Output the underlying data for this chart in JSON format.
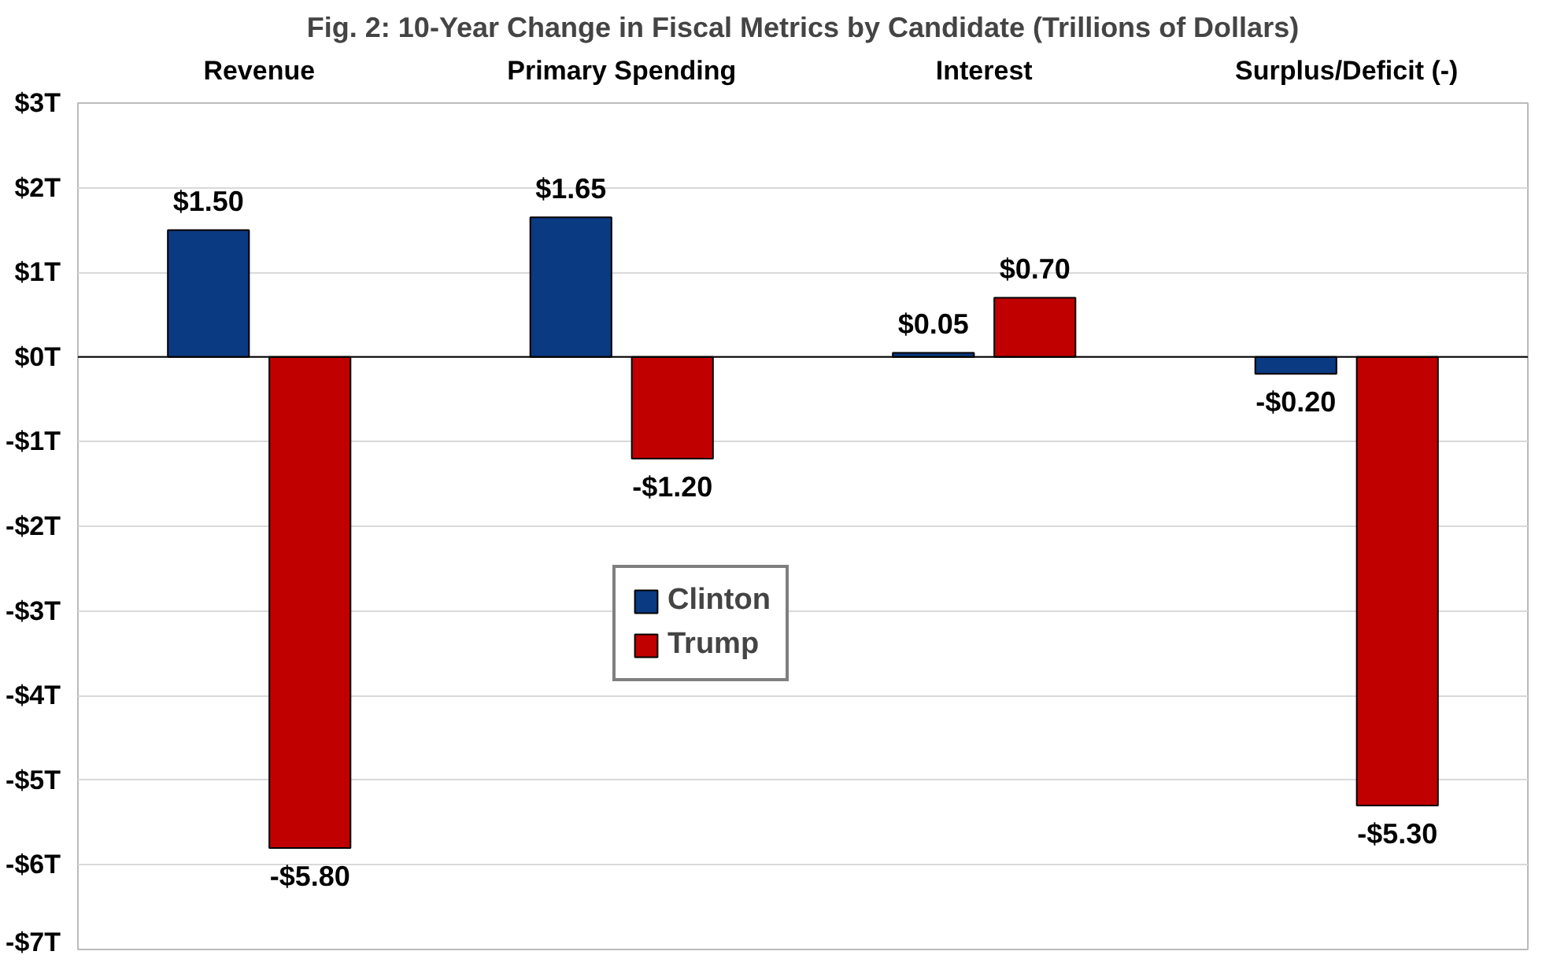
{
  "chart_data": {
    "type": "bar",
    "title": "Fig. 2: 10-Year Change in Fiscal Metrics by Candidate (Trillions of Dollars)",
    "categories": [
      "Revenue",
      "Primary Spending",
      "Interest",
      "Surplus/Deficit (-)"
    ],
    "series": [
      {
        "name": "Clinton",
        "color": "#0a3a82",
        "values": [
          1.5,
          1.65,
          0.05,
          -0.2
        ],
        "value_labels": [
          "$1.50",
          "$1.65",
          "$0.05",
          "-$0.20"
        ]
      },
      {
        "name": "Trump",
        "color": "#c00000",
        "values": [
          -5.8,
          -1.2,
          0.7,
          -5.3
        ],
        "value_labels": [
          "-$5.80",
          "-$1.20",
          "$0.70",
          "-$5.30"
        ]
      }
    ],
    "ylim": [
      -7,
      3
    ],
    "yticks": [
      {
        "value": 3,
        "label": "$3T"
      },
      {
        "value": 2,
        "label": "$2T"
      },
      {
        "value": 1,
        "label": "$1T"
      },
      {
        "value": 0,
        "label": "$0T"
      },
      {
        "value": -1,
        "label": "-$1T"
      },
      {
        "value": -2,
        "label": "-$2T"
      },
      {
        "value": -3,
        "label": "-$3T"
      },
      {
        "value": -4,
        "label": "-$4T"
      },
      {
        "value": -5,
        "label": "-$5T"
      },
      {
        "value": -6,
        "label": "-$6T"
      },
      {
        "value": -7,
        "label": "-$7T"
      }
    ],
    "grid": "y",
    "legend": "center"
  }
}
